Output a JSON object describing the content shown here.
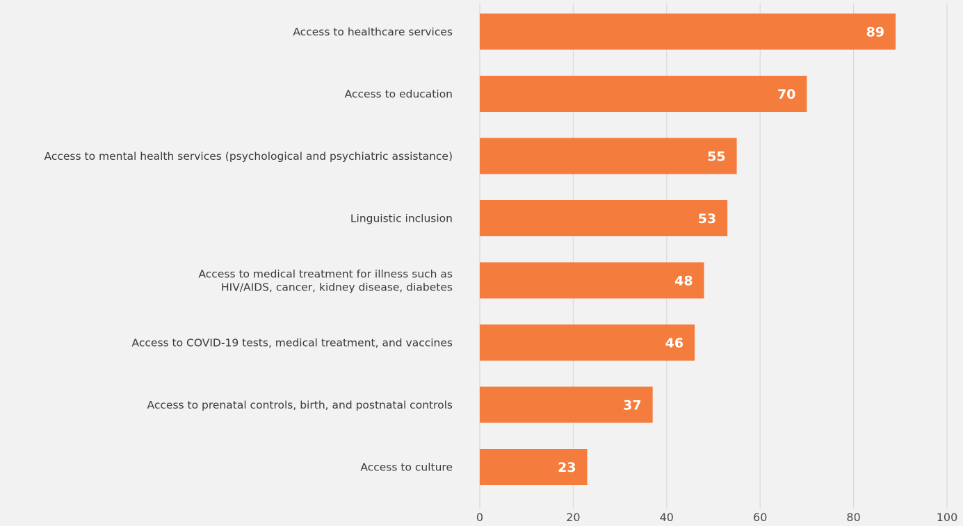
{
  "chart_data": {
    "type": "bar",
    "orientation": "horizontal",
    "categories": [
      [
        "Access to healthcare services"
      ],
      [
        "Access to education"
      ],
      [
        "Access to mental health services (psychological and psychiatric assistance)"
      ],
      [
        "Linguistic inclusion"
      ],
      [
        "Access to medical treatment for illness such as",
        "HIV/AIDS, cancer, kidney disease, diabetes"
      ],
      [
        "Access to COVID-19 tests, medical treatment, and vaccines"
      ],
      [
        "Access to prenatal controls, birth, and postnatal controls"
      ],
      [
        "Access to culture"
      ]
    ],
    "values": [
      89,
      70,
      55,
      53,
      48,
      46,
      37,
      23
    ],
    "value_labels": [
      "89",
      "70",
      "55",
      "53",
      "48",
      "46",
      "37",
      "23"
    ],
    "xlim": [
      0,
      100
    ],
    "xticks": [
      0,
      20,
      40,
      60,
      80,
      100
    ],
    "xtick_labels": [
      "0",
      "20",
      "40",
      "60",
      "80",
      "100"
    ],
    "grid": "vertical",
    "legend": "none",
    "title": "",
    "xlabel": "",
    "ylabel": "",
    "colors": {
      "bar": "#f47c3c",
      "background": "#f2f2f2",
      "grid": "#d9d9d9",
      "value_text": "#ffffff",
      "category_text": "#3a3a3a",
      "tick_text": "#4a4a4a"
    }
  }
}
